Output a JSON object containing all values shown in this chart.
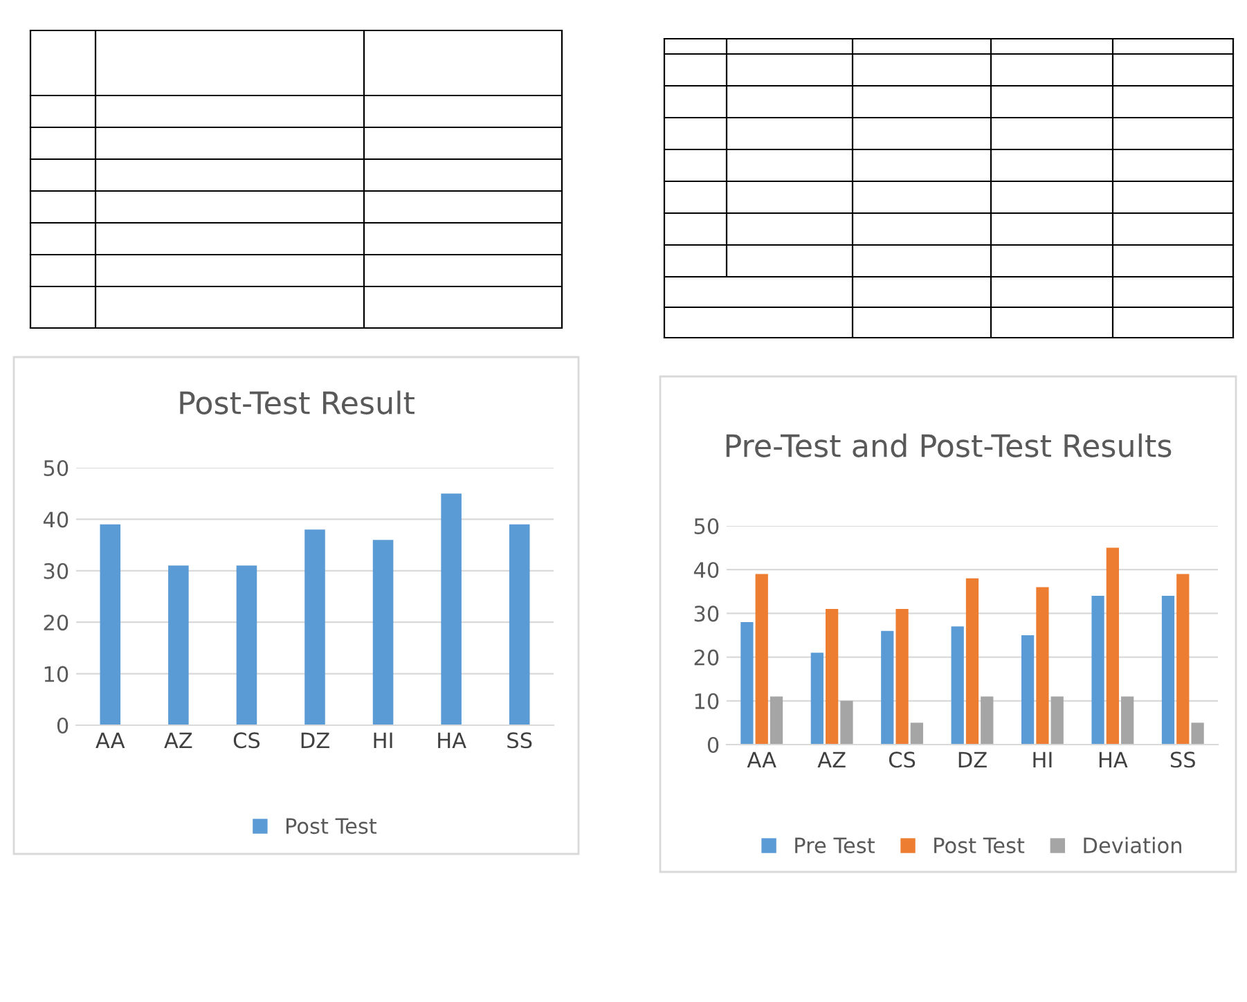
{
  "chart_data": [
    {
      "type": "bar",
      "title": "Post-Test Result",
      "categories": [
        "AA",
        "AZ",
        "CS",
        "DZ",
        "HI",
        "HA",
        "SS"
      ],
      "series": [
        {
          "name": "Post Test",
          "color": "#5b9bd5",
          "values": [
            39,
            31,
            31,
            38,
            36,
            45,
            39
          ]
        }
      ],
      "ylim": [
        0,
        50
      ],
      "yticks": [
        0,
        10,
        20,
        30,
        40,
        50
      ],
      "grid": "y",
      "legend": "bottom"
    },
    {
      "type": "bar",
      "title": "Pre-Test and Post-Test Results",
      "categories": [
        "AA",
        "AZ",
        "CS",
        "DZ",
        "HI",
        "HA",
        "SS"
      ],
      "series": [
        {
          "name": "Pre Test",
          "color": "#5b9bd5",
          "values": [
            28,
            21,
            26,
            27,
            25,
            34,
            34
          ]
        },
        {
          "name": "Post Test",
          "color": "#ed7d31",
          "values": [
            39,
            31,
            31,
            38,
            36,
            45,
            39
          ]
        },
        {
          "name": "Deviation",
          "color": "#a5a5a5",
          "values": [
            11,
            10,
            5,
            11,
            11,
            11,
            5
          ]
        }
      ],
      "ylim": [
        0,
        50
      ],
      "yticks": [
        0,
        10,
        20,
        30,
        40,
        50
      ],
      "grid": "y",
      "legend": "bottom"
    }
  ]
}
